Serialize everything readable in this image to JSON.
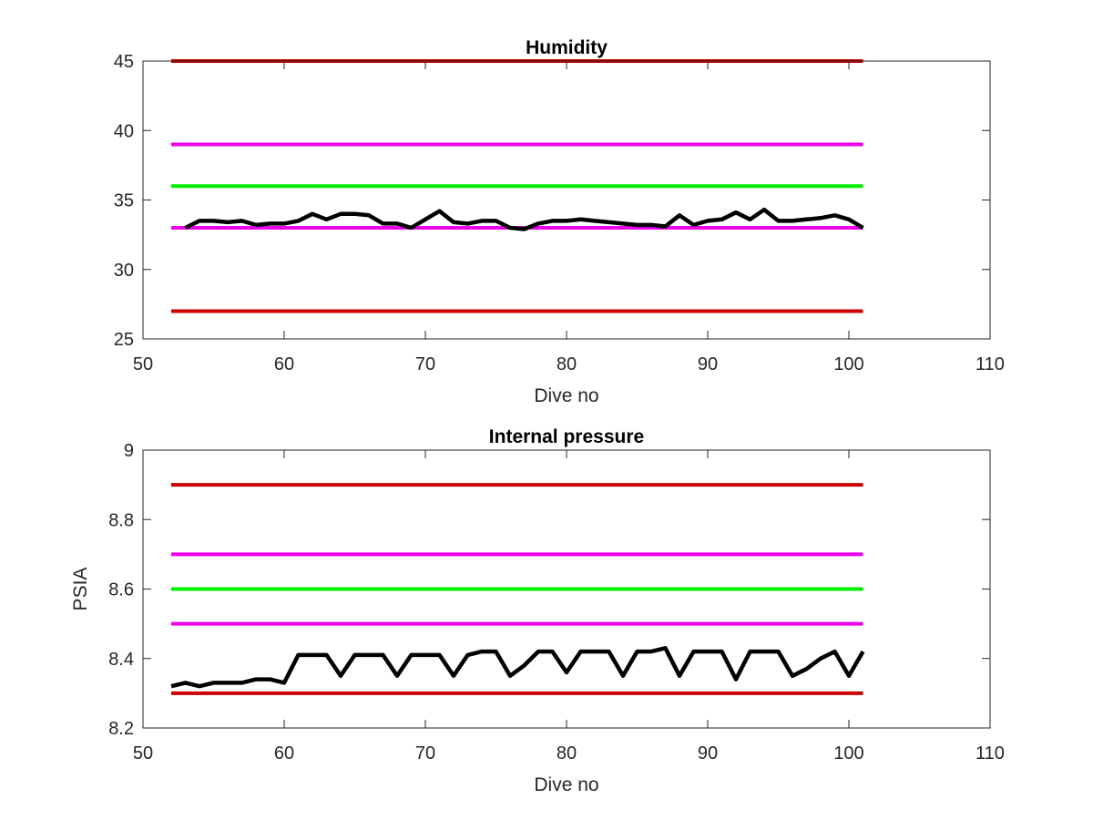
{
  "chart_data": [
    {
      "type": "line",
      "title": "Humidity",
      "xlabel": "Dive no",
      "ylabel": "",
      "xlim": [
        50,
        110
      ],
      "ylim": [
        25,
        45
      ],
      "xticks": [
        "50",
        "60",
        "70",
        "80",
        "90",
        "100",
        "110"
      ],
      "yticks": [
        "25",
        "30",
        "35",
        "40",
        "45"
      ],
      "grid": false,
      "series": [
        {
          "color": "#000000",
          "x": [
            53,
            54,
            55,
            56,
            57,
            58,
            59,
            60,
            61,
            62,
            63,
            64,
            65,
            66,
            67,
            68,
            69,
            70,
            71,
            72,
            73,
            74,
            75,
            76,
            77,
            78,
            79,
            80,
            81,
            82,
            83,
            84,
            85,
            86,
            87,
            88,
            89,
            90,
            91,
            92,
            93,
            94,
            95,
            96,
            97,
            98,
            99,
            100,
            101
          ],
          "y": [
            33.0,
            33.5,
            33.5,
            33.4,
            33.5,
            33.2,
            33.3,
            33.3,
            33.5,
            34.0,
            33.6,
            34.0,
            34.0,
            33.9,
            33.3,
            33.3,
            33.0,
            33.6,
            34.2,
            33.4,
            33.3,
            33.5,
            33.5,
            33.0,
            32.9,
            33.3,
            33.5,
            33.5,
            33.6,
            33.5,
            33.4,
            33.3,
            33.2,
            33.2,
            33.1,
            33.9,
            33.2,
            33.5,
            33.6,
            34.1,
            33.6,
            34.3,
            33.5,
            33.5,
            33.6,
            33.7,
            33.9,
            33.6,
            33.0
          ]
        },
        {
          "color": "#cc0000",
          "x": [
            52,
            101
          ],
          "y": [
            45,
            45
          ]
        },
        {
          "color": "#ee00ee",
          "x": [
            52,
            101
          ],
          "y": [
            39,
            39
          ]
        },
        {
          "color": "#00ee00",
          "x": [
            52,
            101
          ],
          "y": [
            36,
            36
          ]
        },
        {
          "color": "#ee00ee",
          "x": [
            52,
            101
          ],
          "y": [
            33,
            33
          ]
        },
        {
          "color": "#cc0000",
          "x": [
            52,
            101
          ],
          "y": [
            27,
            27
          ]
        }
      ]
    },
    {
      "type": "line",
      "title": "Internal pressure",
      "xlabel": "Dive no",
      "ylabel": "PSIA",
      "xlim": [
        50,
        110
      ],
      "ylim": [
        8.2,
        9.0
      ],
      "xticks": [
        "50",
        "60",
        "70",
        "80",
        "90",
        "100",
        "110"
      ],
      "yticks": [
        "8.2",
        "8.4",
        "8.6",
        "8.8",
        "9"
      ],
      "grid": false,
      "series": [
        {
          "color": "#000000",
          "x": [
            52,
            53,
            54,
            55,
            56,
            57,
            58,
            59,
            60,
            61,
            62,
            63,
            64,
            65,
            66,
            67,
            68,
            69,
            70,
            71,
            72,
            73,
            74,
            75,
            76,
            77,
            78,
            79,
            80,
            81,
            82,
            83,
            84,
            85,
            86,
            87,
            88,
            89,
            90,
            91,
            92,
            93,
            94,
            95,
            96,
            97,
            98,
            99,
            100,
            101
          ],
          "y": [
            8.32,
            8.33,
            8.32,
            8.33,
            8.33,
            8.33,
            8.34,
            8.34,
            8.33,
            8.41,
            8.41,
            8.41,
            8.35,
            8.41,
            8.41,
            8.41,
            8.35,
            8.41,
            8.41,
            8.41,
            8.35,
            8.41,
            8.42,
            8.42,
            8.35,
            8.38,
            8.42,
            8.42,
            8.36,
            8.42,
            8.42,
            8.42,
            8.35,
            8.42,
            8.42,
            8.43,
            8.35,
            8.42,
            8.42,
            8.42,
            8.34,
            8.42,
            8.42,
            8.42,
            8.35,
            8.37,
            8.4,
            8.42,
            8.35,
            8.42
          ]
        },
        {
          "color": "#cc0000",
          "x": [
            52,
            101
          ],
          "y": [
            8.9,
            8.9
          ]
        },
        {
          "color": "#ee00ee",
          "x": [
            52,
            101
          ],
          "y": [
            8.7,
            8.7
          ]
        },
        {
          "color": "#00ee00",
          "x": [
            52,
            101
          ],
          "y": [
            8.6,
            8.6
          ]
        },
        {
          "color": "#ee00ee",
          "x": [
            52,
            101
          ],
          "y": [
            8.5,
            8.5
          ]
        },
        {
          "color": "#cc0000",
          "x": [
            52,
            101
          ],
          "y": [
            8.3,
            8.3
          ]
        }
      ]
    }
  ]
}
